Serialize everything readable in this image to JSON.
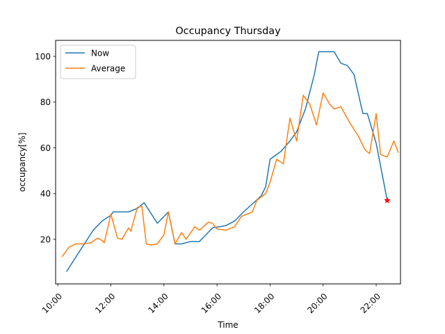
{
  "chart_data": {
    "type": "line",
    "title": "Occupancy Thursday",
    "xlabel": "Time",
    "ylabel": "occupancy[%]",
    "xlim": [
      "09:55",
      "22:55"
    ],
    "ylim": [
      0.5,
      107
    ],
    "x_ticks": [
      "10:00",
      "12:00",
      "14:00",
      "16:00",
      "18:00",
      "20:00",
      "22:00"
    ],
    "y_ticks": [
      20,
      40,
      60,
      80,
      100
    ],
    "grid": false,
    "legend_position": "upper left",
    "series": [
      {
        "name": "Now",
        "color": "#1f77b4",
        "points": [
          [
            "10:20",
            6
          ],
          [
            "10:50",
            15
          ],
          [
            "11:20",
            24
          ],
          [
            "11:40",
            28
          ],
          [
            "12:00",
            30.5
          ],
          [
            "12:05",
            32
          ],
          [
            "12:30",
            32
          ],
          [
            "12:40",
            32
          ],
          [
            "13:00",
            33.5
          ],
          [
            "13:15",
            36
          ],
          [
            "13:45",
            27
          ],
          [
            "14:10",
            32
          ],
          [
            "14:25",
            18
          ],
          [
            "14:40",
            18
          ],
          [
            "15:00",
            19
          ],
          [
            "15:20",
            19
          ],
          [
            "15:30",
            21
          ],
          [
            "15:50",
            25
          ],
          [
            "16:20",
            26
          ],
          [
            "16:40",
            28
          ],
          [
            "17:00",
            32
          ],
          [
            "17:20",
            35.5
          ],
          [
            "17:40",
            39
          ],
          [
            "17:50",
            43
          ],
          [
            "18:00",
            55
          ],
          [
            "18:25",
            58.5
          ],
          [
            "18:45",
            63
          ],
          [
            "19:00",
            67
          ],
          [
            "19:20",
            77
          ],
          [
            "19:40",
            92
          ],
          [
            "19:50",
            102
          ],
          [
            "20:25",
            102
          ],
          [
            "20:40",
            97
          ],
          [
            "20:55",
            96
          ],
          [
            "21:10",
            92
          ],
          [
            "21:30",
            75
          ],
          [
            "21:40",
            75
          ],
          [
            "22:00",
            62
          ],
          [
            "22:25",
            37
          ]
        ]
      },
      {
        "name": "Average",
        "color": "#ff7f0e",
        "points": [
          [
            "10:10",
            12.5
          ],
          [
            "10:25",
            16.5
          ],
          [
            "10:40",
            18
          ],
          [
            "11:00",
            18
          ],
          [
            "11:15",
            18.5
          ],
          [
            "11:30",
            20.5
          ],
          [
            "11:40",
            19.5
          ],
          [
            "11:45",
            18.5
          ],
          [
            "12:00",
            31
          ],
          [
            "12:15",
            20.5
          ],
          [
            "12:25",
            20
          ],
          [
            "12:40",
            25
          ],
          [
            "12:45",
            23.5
          ],
          [
            "13:00",
            34
          ],
          [
            "13:10",
            34.5
          ],
          [
            "13:20",
            18
          ],
          [
            "13:30",
            17.5
          ],
          [
            "13:45",
            18
          ],
          [
            "14:00",
            22
          ],
          [
            "14:10",
            32
          ],
          [
            "14:25",
            18
          ],
          [
            "14:40",
            23
          ],
          [
            "14:50",
            20
          ],
          [
            "15:10",
            25.5
          ],
          [
            "15:20",
            24
          ],
          [
            "15:40",
            27.5
          ],
          [
            "15:50",
            27
          ],
          [
            "16:00",
            24.5
          ],
          [
            "16:20",
            24
          ],
          [
            "16:40",
            25.5
          ],
          [
            "16:55",
            30
          ],
          [
            "17:20",
            32
          ],
          [
            "17:30",
            37
          ],
          [
            "17:50",
            40
          ],
          [
            "18:00",
            45
          ],
          [
            "18:15",
            55
          ],
          [
            "18:30",
            53
          ],
          [
            "18:45",
            73
          ],
          [
            "19:00",
            63
          ],
          [
            "19:15",
            83
          ],
          [
            "19:30",
            79
          ],
          [
            "19:45",
            70
          ],
          [
            "20:00",
            84
          ],
          [
            "20:15",
            79
          ],
          [
            "20:25",
            77
          ],
          [
            "20:40",
            78
          ],
          [
            "21:00",
            71
          ],
          [
            "21:20",
            65
          ],
          [
            "21:35",
            59
          ],
          [
            "21:45",
            57.5
          ],
          [
            "22:00",
            75
          ],
          [
            "22:10",
            57
          ],
          [
            "22:25",
            56
          ],
          [
            "22:40",
            63
          ],
          [
            "22:50",
            58
          ]
        ]
      }
    ],
    "marker": {
      "x": "22:25",
      "y": 37,
      "symbol": "star",
      "color": "#ff0000"
    }
  }
}
